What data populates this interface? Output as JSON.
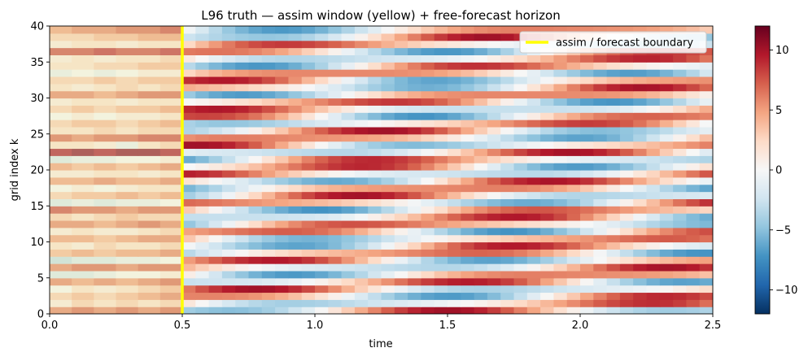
{
  "chart_data": {
    "type": "heatmap",
    "title": "L96 truth — assim window (yellow) + free-forecast horizon",
    "xlabel": "time",
    "ylabel": "grid index k",
    "xlim": [
      0.0,
      2.5
    ],
    "ylim": [
      0,
      40
    ],
    "xticks": [
      0.0,
      0.5,
      1.0,
      1.5,
      2.0,
      2.5
    ],
    "xtick_labels": [
      "0.0",
      "0.5",
      "1.0",
      "1.5",
      "2.0",
      "2.5"
    ],
    "yticks": [
      0,
      5,
      10,
      15,
      20,
      25,
      30,
      35,
      40
    ],
    "ytick_labels": [
      "0",
      "5",
      "10",
      "15",
      "20",
      "25",
      "30",
      "35",
      "40"
    ],
    "colormap": "RdBu_r",
    "color_limits": [
      -12,
      12
    ],
    "colorbar_ticks": [
      10,
      5,
      0,
      -5,
      -10
    ],
    "colorbar_tick_labels": [
      "10",
      "5",
      "0",
      "−5",
      "−10"
    ],
    "boundary": {
      "x": 0.5,
      "color": "#ffff00",
      "label": "assim / forecast boundary"
    },
    "legend_position": "upper right",
    "grid": false,
    "assim_rows": [
      [
        6,
        7,
        6,
        7,
        6,
        7
      ],
      [
        1,
        3,
        2,
        3,
        2,
        3
      ],
      [
        3,
        4,
        3,
        4,
        5,
        6
      ],
      [
        0,
        2,
        1,
        2,
        3,
        4
      ],
      [
        6,
        5,
        6,
        5,
        6,
        7
      ],
      [
        -2,
        -2,
        -1,
        0,
        0,
        1
      ],
      [
        6,
        7,
        7,
        6,
        7,
        7
      ],
      [
        -3,
        -2,
        -2,
        -1,
        -1,
        0
      ],
      [
        4,
        5,
        4,
        5,
        5,
        6
      ],
      [
        2,
        1,
        3,
        2,
        2,
        3
      ],
      [
        5,
        5,
        4,
        5,
        6,
        6
      ],
      [
        1,
        2,
        1,
        1,
        2,
        3
      ],
      [
        6,
        6,
        5,
        6,
        7,
        6
      ],
      [
        3,
        2,
        3,
        4,
        3,
        3
      ],
      [
        8,
        7,
        7,
        6,
        7,
        7
      ],
      [
        -2,
        -1,
        -2,
        -1,
        -1,
        0
      ],
      [
        3,
        4,
        4,
        5,
        4,
        5
      ],
      [
        0,
        1,
        0,
        1,
        2,
        2
      ],
      [
        5,
        5,
        6,
        5,
        5,
        6
      ],
      [
        1,
        1,
        2,
        2,
        1,
        2
      ],
      [
        5,
        4,
        5,
        4,
        5,
        6
      ],
      [
        -2,
        -1,
        -1,
        0,
        0,
        1
      ],
      [
        10,
        11,
        10,
        11,
        11,
        10
      ],
      [
        2,
        2,
        1,
        -1,
        2,
        3
      ],
      [
        7,
        6,
        7,
        7,
        8,
        8
      ],
      [
        2,
        2,
        3,
        2,
        3,
        3
      ],
      [
        3,
        4,
        4,
        3,
        4,
        5
      ],
      [
        0,
        1,
        0,
        1,
        1,
        2
      ],
      [
        3,
        4,
        3,
        4,
        4,
        5
      ],
      [
        1,
        2,
        2,
        1,
        2,
        2
      ],
      [
        6,
        6,
        5,
        6,
        7,
        7
      ],
      [
        2,
        1,
        2,
        3,
        2,
        3
      ],
      [
        3,
        3,
        4,
        3,
        4,
        4
      ],
      [
        -1,
        0,
        -1,
        0,
        1,
        1
      ],
      [
        2,
        2,
        3,
        3,
        4,
        4
      ],
      [
        1,
        2,
        1,
        2,
        2,
        3
      ],
      [
        8,
        8,
        9,
        8,
        8,
        9
      ],
      [
        1,
        2,
        2,
        1,
        2,
        2
      ],
      [
        3,
        3,
        4,
        4,
        5,
        5
      ],
      [
        5,
        6,
        6,
        7,
        7,
        8
      ]
    ]
  }
}
